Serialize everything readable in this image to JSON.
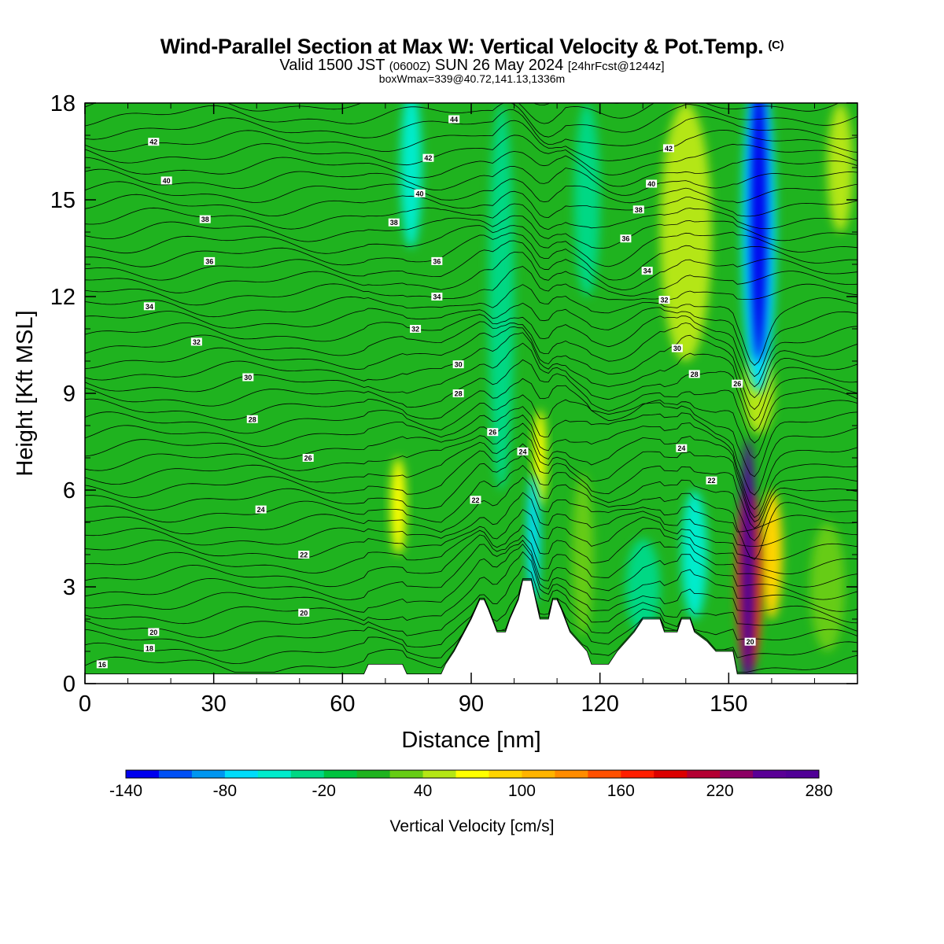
{
  "header": {
    "title": "Wind-Parallel Section at Max W: Vertical Velocity & Pot.Temp.",
    "copyright": "(C)",
    "valid_prefix": "Valid 1500 JST",
    "valid_utc": "(0600Z)",
    "valid_date": "SUN 26 May 2024",
    "forecast": "[24hrFcst@1244z]",
    "boxwmax": "boxWmax=339@40.72,141.13,1336m"
  },
  "chart_data": {
    "type": "heatmap",
    "xlabel": "Distance [nm]",
    "ylabel": "Height [Kft MSL]",
    "xlim": [
      0,
      180
    ],
    "ylim": [
      0,
      18
    ],
    "x_ticks": [
      0,
      30,
      60,
      90,
      120,
      150
    ],
    "y_ticks": [
      0,
      3,
      6,
      9,
      12,
      15,
      18
    ],
    "colorbar": {
      "label": "Vertical Velocity [cm/s]",
      "ticks": [
        -140,
        -80,
        -20,
        40,
        100,
        160,
        220,
        280
      ],
      "levels": [
        -140,
        -120,
        -100,
        -80,
        -60,
        -40,
        -20,
        0,
        20,
        40,
        60,
        80,
        100,
        120,
        140,
        160,
        180,
        200,
        220,
        240,
        260,
        280
      ],
      "colors": [
        "#0000ee",
        "#0050f5",
        "#0096f0",
        "#00dcfa",
        "#00eccc",
        "#00d884",
        "#00c33f",
        "#1fb31f",
        "#66cc14",
        "#b4e614",
        "#ffff00",
        "#ffd400",
        "#ffb400",
        "#ff8c00",
        "#ff5000",
        "#ff1e00",
        "#dc0000",
        "#b40032",
        "#8c0064",
        "#5a0096",
        "#500096"
      ]
    },
    "background_value": 0,
    "terrain": [
      [
        0,
        0.3
      ],
      [
        65,
        0.3
      ],
      [
        66,
        0.6
      ],
      [
        74,
        0.6
      ],
      [
        75,
        0.3
      ],
      [
        83,
        0.3
      ],
      [
        84,
        0.6
      ],
      [
        86,
        1.0
      ],
      [
        88,
        1.5
      ],
      [
        90,
        2.0
      ],
      [
        92,
        2.6
      ],
      [
        93,
        2.6
      ],
      [
        94,
        2.3
      ],
      [
        96,
        1.6
      ],
      [
        98,
        1.6
      ],
      [
        99,
        2.0
      ],
      [
        101,
        2.6
      ],
      [
        102,
        3.2
      ],
      [
        104,
        3.2
      ],
      [
        105,
        2.6
      ],
      [
        106,
        2.0
      ],
      [
        108,
        2.0
      ],
      [
        109,
        2.6
      ],
      [
        110,
        2.6
      ],
      [
        111,
        2.3
      ],
      [
        113,
        1.6
      ],
      [
        115,
        1.3
      ],
      [
        117,
        1.0
      ],
      [
        118,
        0.6
      ],
      [
        122,
        0.6
      ],
      [
        124,
        1.0
      ],
      [
        126,
        1.3
      ],
      [
        128,
        1.6
      ],
      [
        130,
        2.0
      ],
      [
        134,
        2.0
      ],
      [
        135,
        1.6
      ],
      [
        138,
        1.6
      ],
      [
        139,
        2.0
      ],
      [
        141,
        2.0
      ],
      [
        142,
        1.6
      ],
      [
        145,
        1.3
      ],
      [
        147,
        1.0
      ],
      [
        151,
        1.0
      ],
      [
        152,
        0.3
      ],
      [
        180,
        0.3
      ]
    ],
    "updrafts": [
      {
        "x": 154.5,
        "y": 3.6,
        "width_nm": 1.8,
        "height_kft": 8.0,
        "value": 270
      },
      {
        "x": 154.8,
        "y": 3.2,
        "width_nm": 3.0,
        "height_kft": 5.5,
        "value": 150
      },
      {
        "x": 160.0,
        "y": 4.0,
        "width_nm": 2.5,
        "height_kft": 4.0,
        "value": 80
      },
      {
        "x": 157.0,
        "y": 9.0,
        "width_nm": 3.5,
        "height_kft": 2.5,
        "value": 40
      },
      {
        "x": 106.0,
        "y": 7.0,
        "width_nm": 1.5,
        "height_kft": 3.0,
        "value": 60
      },
      {
        "x": 73.0,
        "y": 5.5,
        "width_nm": 1.8,
        "height_kft": 3.0,
        "value": 60
      },
      {
        "x": 140.0,
        "y": 14.0,
        "width_nm": 6.0,
        "height_kft": 8.0,
        "value": 40
      },
      {
        "x": 173.0,
        "y": 3.0,
        "width_nm": 4.0,
        "height_kft": 4.0,
        "value": 20
      },
      {
        "x": 116.0,
        "y": 4.0,
        "width_nm": 2.5,
        "height_kft": 5.0,
        "value": 20
      },
      {
        "x": 176.0,
        "y": 16.0,
        "width_nm": 3.0,
        "height_kft": 4.0,
        "value": 40
      }
    ],
    "downdrafts": [
      {
        "x": 157.0,
        "y": 14.5,
        "width_nm": 2.0,
        "height_kft": 9.0,
        "value": -140
      },
      {
        "x": 157.0,
        "y": 14.0,
        "width_nm": 4.0,
        "height_kft": 10.0,
        "value": -80
      },
      {
        "x": 104.5,
        "y": 4.5,
        "width_nm": 1.5,
        "height_kft": 4.0,
        "value": -80
      },
      {
        "x": 76.0,
        "y": 16.0,
        "width_nm": 2.5,
        "height_kft": 5.0,
        "value": -60
      },
      {
        "x": 97.0,
        "y": 12.0,
        "width_nm": 3.0,
        "height_kft": 12.0,
        "value": -40
      },
      {
        "x": 142.0,
        "y": 4.0,
        "width_nm": 3.0,
        "height_kft": 4.0,
        "value": -60
      },
      {
        "x": 117.0,
        "y": 15.0,
        "width_nm": 3.0,
        "height_kft": 6.0,
        "value": -40
      },
      {
        "x": 130.0,
        "y": 3.0,
        "width_nm": 4.0,
        "height_kft": 3.0,
        "value": -40
      }
    ],
    "isentrope_labels": [
      {
        "text": "16",
        "x": 4,
        "y": 0.6
      },
      {
        "text": "18",
        "x": 15,
        "y": 1.1
      },
      {
        "text": "20",
        "x": 16,
        "y": 1.6
      },
      {
        "text": "20",
        "x": 51,
        "y": 2.2
      },
      {
        "text": "22",
        "x": 51,
        "y": 4.0
      },
      {
        "text": "24",
        "x": 41,
        "y": 5.4
      },
      {
        "text": "26",
        "x": 52,
        "y": 7.0
      },
      {
        "text": "28",
        "x": 39,
        "y": 8.2
      },
      {
        "text": "30",
        "x": 38,
        "y": 9.5
      },
      {
        "text": "32",
        "x": 26,
        "y": 10.6
      },
      {
        "text": "34",
        "x": 15,
        "y": 11.7
      },
      {
        "text": "36",
        "x": 29,
        "y": 13.1
      },
      {
        "text": "38",
        "x": 28,
        "y": 14.4
      },
      {
        "text": "40",
        "x": 19,
        "y": 15.6
      },
      {
        "text": "42",
        "x": 16,
        "y": 16.8
      },
      {
        "text": "22",
        "x": 91,
        "y": 5.7
      },
      {
        "text": "26",
        "x": 95,
        "y": 7.8
      },
      {
        "text": "24",
        "x": 102,
        "y": 7.2
      },
      {
        "text": "28",
        "x": 87,
        "y": 9.0
      },
      {
        "text": "30",
        "x": 87,
        "y": 9.9
      },
      {
        "text": "32",
        "x": 77,
        "y": 11.0
      },
      {
        "text": "34",
        "x": 82,
        "y": 12.0
      },
      {
        "text": "36",
        "x": 82,
        "y": 13.1
      },
      {
        "text": "38",
        "x": 72,
        "y": 14.3
      },
      {
        "text": "40",
        "x": 78,
        "y": 15.2
      },
      {
        "text": "42",
        "x": 80,
        "y": 16.3
      },
      {
        "text": "44",
        "x": 86,
        "y": 17.5
      },
      {
        "text": "42",
        "x": 136,
        "y": 16.6
      },
      {
        "text": "40",
        "x": 132,
        "y": 15.5
      },
      {
        "text": "38",
        "x": 129,
        "y": 14.7
      },
      {
        "text": "36",
        "x": 126,
        "y": 13.8
      },
      {
        "text": "34",
        "x": 131,
        "y": 12.8
      },
      {
        "text": "32",
        "x": 135,
        "y": 11.9
      },
      {
        "text": "30",
        "x": 138,
        "y": 10.4
      },
      {
        "text": "28",
        "x": 142,
        "y": 9.6
      },
      {
        "text": "26",
        "x": 152,
        "y": 9.3
      },
      {
        "text": "24",
        "x": 139,
        "y": 7.3
      },
      {
        "text": "22",
        "x": 146,
        "y": 6.3
      },
      {
        "text": "20",
        "x": 155,
        "y": 1.3
      }
    ]
  }
}
